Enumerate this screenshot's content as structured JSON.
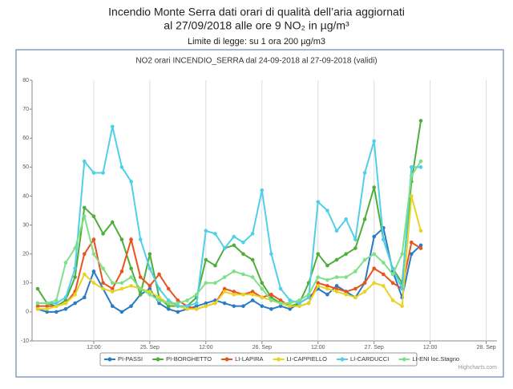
{
  "header": {
    "title_line1": "Incendio Monte Serra dati orari di qualità dell’aria aggiornati",
    "title_line2": "al 27/09/2018 alle ore 9 NO₂          in µg/m³",
    "subtitle": "Limite di legge: su 1 ora 200 µg/m3"
  },
  "chart_data": {
    "type": "line",
    "title": "NO2 orari INCENDIO_SERRA dal 24-09-2018 al 27-09-2018 (validi)",
    "credit": "Highcharts.com",
    "x": [
      0,
      2,
      4,
      6,
      8,
      10,
      12,
      14,
      16,
      18,
      20,
      22,
      24,
      26,
      28,
      30,
      32,
      34,
      36,
      38,
      40,
      42,
      44,
      46,
      48,
      50,
      52,
      54,
      56,
      58,
      60,
      62,
      64,
      66,
      68,
      70,
      72,
      74,
      76,
      78,
      80,
      82
    ],
    "xlim": [
      -1.2,
      98.3
    ],
    "xticks": [
      {
        "value": 12,
        "label": "12:00"
      },
      {
        "value": 24,
        "label": "25. Sep"
      },
      {
        "value": 36,
        "label": "12:00"
      },
      {
        "value": 48,
        "label": "26. Sep"
      },
      {
        "value": 60,
        "label": "12:00"
      },
      {
        "value": 72,
        "label": "27. Sep"
      },
      {
        "value": 84,
        "label": "12:00"
      },
      {
        "value": 96,
        "label": "28. Sep"
      }
    ],
    "ylim": [
      -10,
      80
    ],
    "yticks": [
      -10,
      0,
      10,
      20,
      30,
      40,
      50,
      60,
      70,
      80
    ],
    "grid": "x",
    "series": [
      {
        "name": "PI-PASSI",
        "color": "#2b7bc4",
        "values": [
          1,
          0,
          0,
          1,
          3,
          5,
          14,
          8,
          2,
          0,
          2,
          6,
          8,
          3,
          1,
          0,
          1,
          2,
          3,
          4,
          3,
          2,
          2,
          4,
          2,
          1,
          2,
          1,
          3,
          5,
          8,
          6,
          9,
          7,
          5,
          10,
          26,
          29,
          14,
          5,
          20,
          23
        ]
      },
      {
        "name": "PI-BORGHETTO",
        "color": "#4fae3a",
        "values": [
          8,
          3,
          2,
          4,
          12,
          36,
          33,
          27,
          31,
          25,
          15,
          6,
          20,
          5,
          2,
          2,
          2,
          5,
          18,
          16,
          22,
          23,
          20,
          18,
          10,
          5,
          3,
          2,
          3,
          10,
          20,
          16,
          18,
          20,
          22,
          32,
          43,
          25,
          15,
          10,
          45,
          66
        ]
      },
      {
        "name": "LI-LAPIRA",
        "color": "#e8541f",
        "values": [
          2,
          2,
          2,
          3,
          7,
          20,
          25,
          10,
          8,
          14,
          25,
          12,
          9,
          13,
          8,
          4,
          2,
          1,
          2,
          3,
          8,
          7,
          6,
          7,
          5,
          6,
          4,
          2,
          2,
          3,
          10,
          9,
          8,
          7,
          8,
          10,
          15,
          13,
          10,
          8,
          24,
          22
        ]
      },
      {
        "name": "LI-CAPPIELLO",
        "color": "#e6d424",
        "values": [
          1,
          1,
          2,
          3,
          6,
          13,
          10,
          8,
          7,
          8,
          9,
          8,
          7,
          5,
          3,
          2,
          1,
          1,
          2,
          3,
          7,
          6,
          6,
          6,
          5,
          4,
          3,
          2,
          2,
          3,
          9,
          8,
          7,
          6,
          5,
          7,
          10,
          9,
          4,
          2,
          40,
          28
        ]
      },
      {
        "name": "LI-CARDUCCI",
        "color": "#4fd0e6",
        "values": [
          3,
          3,
          3,
          5,
          15,
          52,
          48,
          48,
          64,
          50,
          45,
          25,
          15,
          8,
          4,
          2,
          2,
          3,
          28,
          27,
          22,
          26,
          24,
          27,
          42,
          20,
          8,
          4,
          3,
          5,
          38,
          35,
          28,
          32,
          25,
          48,
          59,
          25,
          15,
          8,
          50,
          50
        ]
      },
      {
        "name": "LI-ENI loc.Stagno",
        "color": "#7fe08a",
        "values": [
          3,
          3,
          4,
          17,
          22,
          33,
          20,
          15,
          10,
          10,
          12,
          8,
          6,
          4,
          3,
          3,
          4,
          6,
          10,
          10,
          12,
          14,
          13,
          12,
          8,
          4,
          3,
          3,
          4,
          6,
          12,
          11,
          12,
          12,
          14,
          18,
          20,
          17,
          13,
          20,
          47,
          52
        ]
      }
    ]
  }
}
